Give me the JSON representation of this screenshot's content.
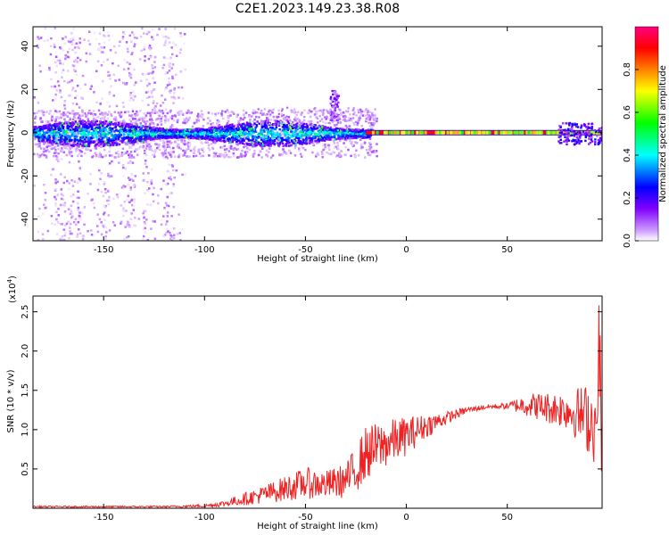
{
  "title": "C2E1.2023.149.23.38.R08",
  "chart_data": [
    {
      "type": "heatmap",
      "xlabel": "Height of straight line (km)",
      "ylabel": "Frequency (Hz)",
      "xlim": [
        -185,
        97
      ],
      "ylim": [
        -50,
        49
      ],
      "x_ticks": [
        -150,
        -100,
        -50,
        0,
        50
      ],
      "y_ticks": [
        -40,
        -20,
        0,
        20,
        40
      ],
      "colorbar": {
        "label": "Normalized spectral amplitude",
        "range": [
          0,
          1
        ],
        "ticks": [
          "0.0",
          "0.2",
          "0.4",
          "0.6",
          "0.8"
        ],
        "colors": [
          "#ffffff",
          "#cc99ff",
          "#8000ff",
          "#0000ff",
          "#00ffff",
          "#00ff00",
          "#ffff00",
          "#ff8000",
          "#ff0000",
          "#ff0080"
        ]
      },
      "features": [
        {
          "name": "broadband scatter",
          "x_range": [
            -185,
            -110
          ],
          "freq_range": [
            -50,
            49
          ],
          "amplitude": 0.05
        },
        {
          "name": "central band",
          "x_range": [
            -185,
            -20
          ],
          "freq_range": [
            -6,
            6
          ],
          "amplitude": 0.3
        },
        {
          "name": "narrow line",
          "x_range": [
            -20,
            97
          ],
          "freq_center": 0,
          "amplitude": 0.9
        },
        {
          "name": "spike",
          "x": -36,
          "freq_range": [
            8,
            20
          ],
          "amplitude": 0.2
        }
      ]
    },
    {
      "type": "line",
      "xlabel": "Height of straight line (km)",
      "ylabel": "SNR (10 * v/v)",
      "yscale_label": "(x10",
      "yscale_exp": "4",
      "xlim": [
        -185,
        97
      ],
      "ylim": [
        0,
        2.7
      ],
      "x_ticks": [
        -150,
        -100,
        -50,
        0,
        50
      ],
      "y_ticks": [
        "0.5",
        "1.0",
        "1.5",
        "2.0",
        "2.5"
      ],
      "color": "#ee2222",
      "x": [
        -185,
        -150,
        -120,
        -100,
        -90,
        -80,
        -70,
        -60,
        -50,
        -40,
        -30,
        -25,
        -20,
        -10,
        0,
        10,
        20,
        30,
        40,
        50,
        60,
        70,
        80,
        90,
        97
      ],
      "y": [
        0.02,
        0.02,
        0.02,
        0.03,
        0.06,
        0.12,
        0.18,
        0.25,
        0.32,
        0.3,
        0.35,
        0.5,
        0.7,
        0.82,
        0.92,
        1.05,
        1.15,
        1.25,
        1.29,
        1.3,
        1.32,
        1.28,
        1.25,
        1.15,
        1.0
      ],
      "fluct": [
        0.01,
        0.01,
        0.01,
        0.02,
        0.04,
        0.08,
        0.12,
        0.16,
        0.2,
        0.18,
        0.22,
        0.3,
        0.35,
        0.3,
        0.25,
        0.15,
        0.08,
        0.04,
        0.03,
        0.04,
        0.15,
        0.2,
        0.25,
        0.45,
        0.6
      ]
    }
  ]
}
